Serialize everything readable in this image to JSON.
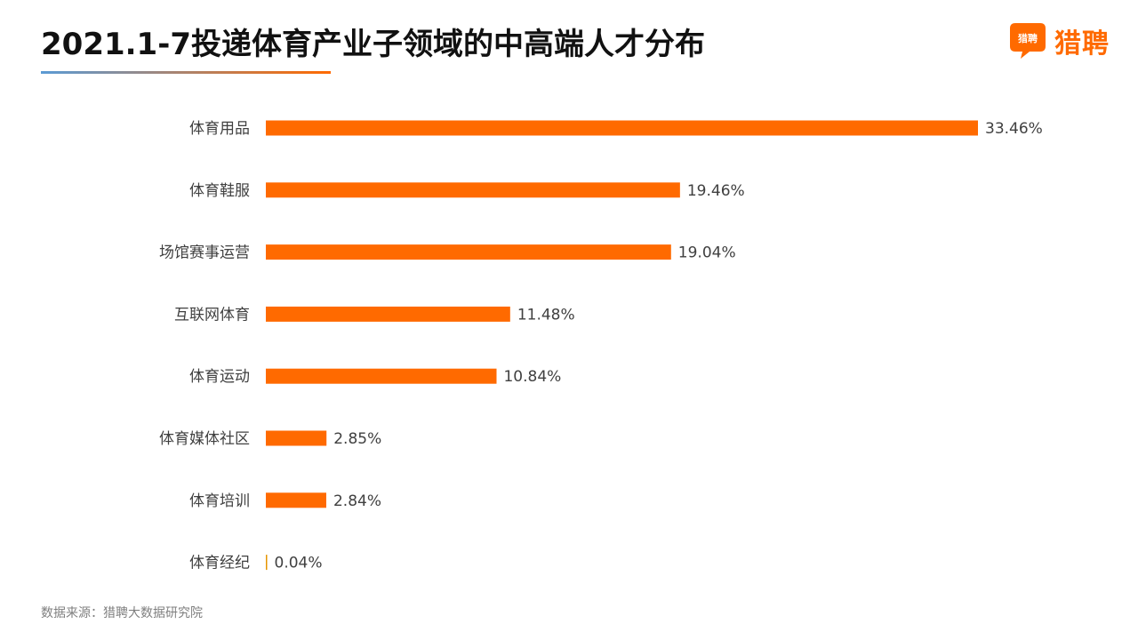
{
  "header": {
    "title": "2021.1-7投递体育产业子领域的中高端人才分布"
  },
  "logo": {
    "badge_text": "猎聘",
    "text": "猎聘",
    "color": "#FF6A00"
  },
  "footer": {
    "source": "数据来源：猎聘大数据研究院"
  },
  "colors": {
    "bar": "#FF6A00",
    "bar_small": "#E69500",
    "underline_start": "#5B9BD5",
    "underline_end": "#FF6A00"
  },
  "chart_data": {
    "type": "bar",
    "orientation": "horizontal",
    "categories": [
      "体育用品",
      "体育鞋服",
      "场馆赛事运营",
      "互联网体育",
      "体育运动",
      "体育媒体社区",
      "体育培训",
      "体育经纪"
    ],
    "values": [
      33.46,
      19.46,
      19.04,
      11.48,
      10.84,
      2.85,
      2.84,
      0.04
    ],
    "value_labels": [
      "33.46%",
      "19.46%",
      "19.04%",
      "11.48%",
      "10.84%",
      "2.85%",
      "2.84%",
      "0.04%"
    ],
    "unit": "%",
    "xlim": [
      0,
      33.46
    ],
    "grid": false,
    "legend": "none"
  }
}
